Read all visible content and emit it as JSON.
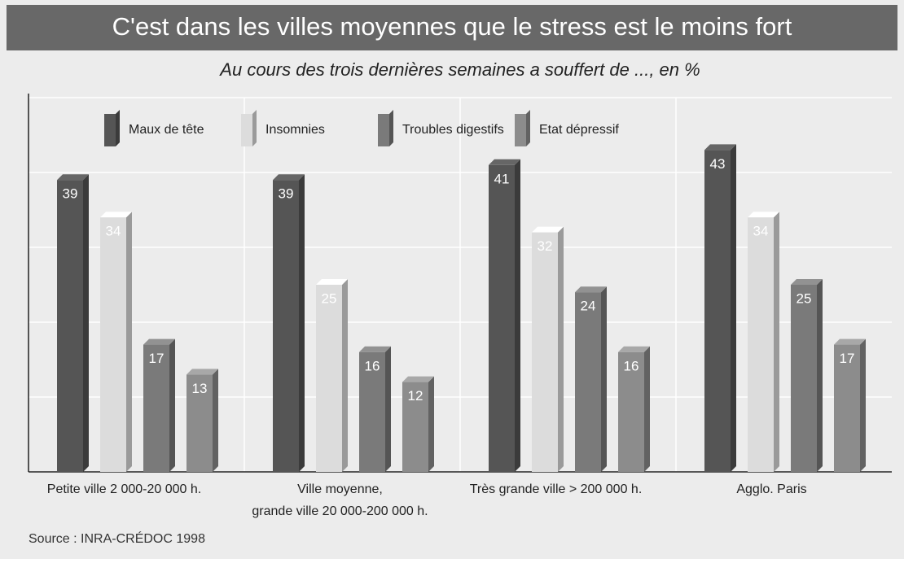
{
  "chart_data": {
    "type": "bar",
    "title": "C'est dans les villes moyennes que le stress est le moins fort",
    "subtitle": "Au cours des trois dernières semaines a souffert de ..., en %",
    "source": "Source : INRA-CRÉDOC 1998",
    "categories": [
      "Petite ville 2 000-20 000 h.",
      "Ville moyenne,\ngrande ville 20 000-200 000 h.",
      "Très grande ville > 200 000 h.",
      "Agglo. Paris"
    ],
    "series": [
      {
        "name": "Maux de tête",
        "color": "#555555",
        "values": [
          39,
          39,
          41,
          43
        ]
      },
      {
        "name": "Insomnies",
        "color": "#dcdcdc",
        "values": [
          34,
          25,
          32,
          34
        ]
      },
      {
        "name": "Troubles digestifs",
        "color": "#7a7a7a",
        "values": [
          17,
          16,
          24,
          25
        ]
      },
      {
        "name": "Etat dépressif",
        "color": "#8c8c8c",
        "values": [
          13,
          12,
          16,
          17
        ]
      }
    ],
    "ylim": [
      0,
      50
    ],
    "yticks": [
      0,
      10,
      20,
      30,
      40,
      50
    ],
    "grid": true
  }
}
